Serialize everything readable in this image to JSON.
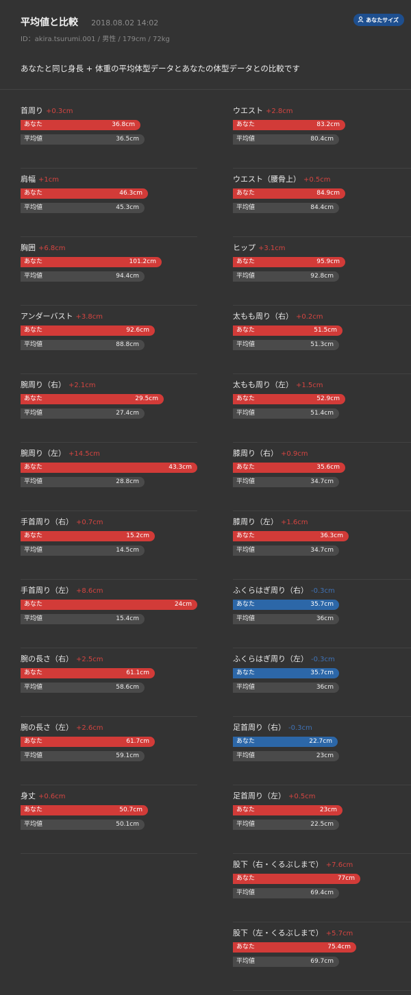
{
  "header": {
    "title": "平均値と比較",
    "date": "2018.08.02 14:02",
    "user_info": "ID：akira.tsurumi.001 / 男性 / 179cm / 72kg",
    "badge_label": "あなたサイズ",
    "badge_icon": "user-icon"
  },
  "intro": "あなたと同じ身長 + 体重の平均体型データとあなたの体型データとの比較です",
  "labels": {
    "you": "あなた",
    "average": "平均値"
  },
  "colors": {
    "positive": "#d23b38",
    "negative": "#2c67a8",
    "average": "#4a4a4a",
    "background": "#333333"
  },
  "items_left": [
    {
      "name": "首周り",
      "diff": "+0.3cm",
      "you": "36.8cm",
      "avg": "36.5cm",
      "you_fill": 0.68
    },
    {
      "name": "肩幅",
      "diff": "+1cm",
      "you": "46.3cm",
      "avg": "45.3cm",
      "you_fill": 0.72
    },
    {
      "name": "胸囲",
      "diff": "+6.8cm",
      "you": "101.2cm",
      "avg": "94.4cm",
      "you_fill": 0.8
    },
    {
      "name": "アンダーバスト",
      "diff": "+3.8cm",
      "you": "92.6cm",
      "avg": "88.8cm",
      "you_fill": 0.76
    },
    {
      "name": "腕周り（右）",
      "diff": "+2.1cm",
      "you": "29.5cm",
      "avg": "27.4cm",
      "you_fill": 0.81
    },
    {
      "name": "腕周り（左）",
      "diff": "+14.5cm",
      "you": "43.3cm",
      "avg": "28.8cm",
      "you_fill": 1.0
    },
    {
      "name": "手首周り（右）",
      "diff": "+0.7cm",
      "you": "15.2cm",
      "avg": "14.5cm",
      "you_fill": 0.76
    },
    {
      "name": "手首周り（左）",
      "diff": "+8.6cm",
      "you": "24cm",
      "avg": "15.4cm",
      "you_fill": 1.0
    },
    {
      "name": "腕の長さ（右）",
      "diff": "+2.5cm",
      "you": "61.1cm",
      "avg": "58.6cm",
      "you_fill": 0.76
    },
    {
      "name": "腕の長さ（左）",
      "diff": "+2.6cm",
      "you": "61.7cm",
      "avg": "59.1cm",
      "you_fill": 0.76
    },
    {
      "name": "身丈",
      "diff": "+0.6cm",
      "you": "50.7cm",
      "avg": "50.1cm",
      "you_fill": 0.72
    }
  ],
  "items_right": [
    {
      "name": "ウエスト",
      "diff": "+2.8cm",
      "you": "83.2cm",
      "avg": "80.4cm",
      "you_fill": 0.74
    },
    {
      "name": "ウエスト（腰骨上）",
      "diff": "+0.5cm",
      "you": "84.9cm",
      "avg": "84.4cm",
      "you_fill": 0.74
    },
    {
      "name": "ヒップ",
      "diff": "+3.1cm",
      "you": "95.9cm",
      "avg": "92.8cm",
      "you_fill": 0.74
    },
    {
      "name": "太もも周り（右）",
      "diff": "+0.2cm",
      "you": "51.5cm",
      "avg": "51.3cm",
      "you_fill": 0.72
    },
    {
      "name": "太もも周り（左）",
      "diff": "+1.5cm",
      "you": "52.9cm",
      "avg": "51.4cm",
      "you_fill": 0.74
    },
    {
      "name": "膝周り（右）",
      "diff": "+0.9cm",
      "you": "35.6cm",
      "avg": "34.7cm",
      "you_fill": 0.74
    },
    {
      "name": "膝周り（左）",
      "diff": "+1.6cm",
      "you": "36.3cm",
      "avg": "34.7cm",
      "you_fill": 0.76
    },
    {
      "name": "ふくらはぎ周り（右）",
      "diff": "-0.3cm",
      "you": "35.7cm",
      "avg": "36cm",
      "you_fill": 0.7
    },
    {
      "name": "ふくらはぎ周り（左）",
      "diff": "-0.3cm",
      "you": "35.7cm",
      "avg": "36cm",
      "you_fill": 0.7
    },
    {
      "name": "足首周り（右）",
      "diff": "-0.3cm",
      "you": "22.7cm",
      "avg": "23cm",
      "you_fill": 0.69
    },
    {
      "name": "足首周り（左）",
      "diff": "+0.5cm",
      "you": "23cm",
      "avg": "22.5cm",
      "you_fill": 0.72
    },
    {
      "name": "股下（右・くるぶしまで）",
      "diff": "+7.6cm",
      "you": "77cm",
      "avg": "69.4cm",
      "you_fill": 0.84
    },
    {
      "name": "股下（左・くるぶしまで）",
      "diff": "+5.7cm",
      "you": "75.4cm",
      "avg": "69.7cm",
      "you_fill": 0.81
    }
  ]
}
